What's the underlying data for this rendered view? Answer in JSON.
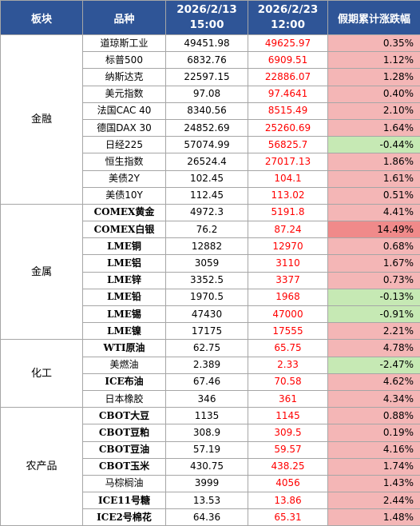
{
  "header": {
    "sector": "板块",
    "variety": "品种",
    "date1": "2026/2/13",
    "time1": "15:00",
    "date2": "2026/2/23",
    "time2": "12:00",
    "change": "假期累计涨跌幅"
  },
  "colors": {
    "header_bg": "#2f5597",
    "up_bg": "#f4b6b6",
    "down_bg": "#c6e9b4",
    "new_value": "#ff0000"
  },
  "sections": [
    {
      "name": "金融",
      "rows": [
        {
          "name": "道琼斯工业",
          "v1": "49451.98",
          "v2": "49625.97",
          "chg": "0.35%",
          "dir": "pos"
        },
        {
          "name": "标普500",
          "v1": "6832.76",
          "v2": "6909.51",
          "chg": "1.12%",
          "dir": "pos"
        },
        {
          "name": "纳斯达克",
          "v1": "22597.15",
          "v2": "22886.07",
          "chg": "1.28%",
          "dir": "pos"
        },
        {
          "name": "美元指数",
          "v1": "97.08",
          "v2": "97.4641",
          "chg": "0.40%",
          "dir": "pos"
        },
        {
          "name": "法国CAC 40",
          "v1": "8340.56",
          "v2": "8515.49",
          "chg": "2.10%",
          "dir": "pos"
        },
        {
          "name": "德国DAX 30",
          "v1": "24852.69",
          "v2": "25260.69",
          "chg": "1.64%",
          "dir": "pos"
        },
        {
          "name": "日经225",
          "v1": "57074.99",
          "v2": "56825.7",
          "chg": "-0.44%",
          "dir": "neg"
        },
        {
          "name": "恒生指数",
          "v1": "26524.4",
          "v2": "27017.13",
          "chg": "1.86%",
          "dir": "pos"
        },
        {
          "name": "美债2Y",
          "v1": "102.45",
          "v2": "104.1",
          "chg": "1.61%",
          "dir": "pos"
        },
        {
          "name": "美债10Y",
          "v1": "112.45",
          "v2": "113.02",
          "chg": "0.51%",
          "dir": "pos"
        }
      ]
    },
    {
      "name": "金属",
      "rows": [
        {
          "name": "COMEX黄金",
          "v1": "4972.3",
          "v2": "5191.8",
          "chg": "4.41%",
          "dir": "pos",
          "serif": true
        },
        {
          "name": "COMEX白银",
          "v1": "76.2",
          "v2": "87.24",
          "chg": "14.49%",
          "dir": "big",
          "serif": true
        },
        {
          "name": "LME铜",
          "v1": "12882",
          "v2": "12970",
          "chg": "0.68%",
          "dir": "pos",
          "serif": true
        },
        {
          "name": "LME铝",
          "v1": "3059",
          "v2": "3110",
          "chg": "1.67%",
          "dir": "pos",
          "serif": true
        },
        {
          "name": "LME锌",
          "v1": "3352.5",
          "v2": "3377",
          "chg": "0.73%",
          "dir": "pos",
          "serif": true
        },
        {
          "name": "LME铅",
          "v1": "1970.5",
          "v2": "1968",
          "chg": "-0.13%",
          "dir": "neg",
          "serif": true
        },
        {
          "name": "LME锡",
          "v1": "47430",
          "v2": "47000",
          "chg": "-0.91%",
          "dir": "neg",
          "serif": true
        },
        {
          "name": "LME镍",
          "v1": "17175",
          "v2": "17555",
          "chg": "2.21%",
          "dir": "pos",
          "serif": true
        }
      ]
    },
    {
      "name": "化工",
      "rows": [
        {
          "name": "WTI原油",
          "v1": "62.75",
          "v2": "65.75",
          "chg": "4.78%",
          "dir": "pos",
          "serif": true
        },
        {
          "name": "美燃油",
          "v1": "2.389",
          "v2": "2.33",
          "chg": "-2.47%",
          "dir": "neg"
        },
        {
          "name": "ICE布油",
          "v1": "67.46",
          "v2": "70.58",
          "chg": "4.62%",
          "dir": "pos",
          "serif": true
        },
        {
          "name": "日本橡胶",
          "v1": "346",
          "v2": "361",
          "chg": "4.34%",
          "dir": "pos"
        }
      ]
    },
    {
      "name": "农产品",
      "rows": [
        {
          "name": "CBOT大豆",
          "v1": "1135",
          "v2": "1145",
          "chg": "0.88%",
          "dir": "pos",
          "serif": true
        },
        {
          "name": "CBOT豆粕",
          "v1": "308.9",
          "v2": "309.5",
          "chg": "0.19%",
          "dir": "pos",
          "serif": true
        },
        {
          "name": "CBOT豆油",
          "v1": "57.19",
          "v2": "59.57",
          "chg": "4.16%",
          "dir": "pos",
          "serif": true
        },
        {
          "name": "CBOT玉米",
          "v1": "430.75",
          "v2": "438.25",
          "chg": "1.74%",
          "dir": "pos",
          "serif": true
        },
        {
          "name": "马棕榈油",
          "v1": "3999",
          "v2": "4056",
          "chg": "1.43%",
          "dir": "pos"
        },
        {
          "name": "ICE11号糖",
          "v1": "13.53",
          "v2": "13.86",
          "chg": "2.44%",
          "dir": "pos",
          "serif": true
        },
        {
          "name": "ICE2号棉花",
          "v1": "64.36",
          "v2": "65.31",
          "chg": "1.48%",
          "dir": "pos",
          "serif": true
        }
      ]
    }
  ]
}
